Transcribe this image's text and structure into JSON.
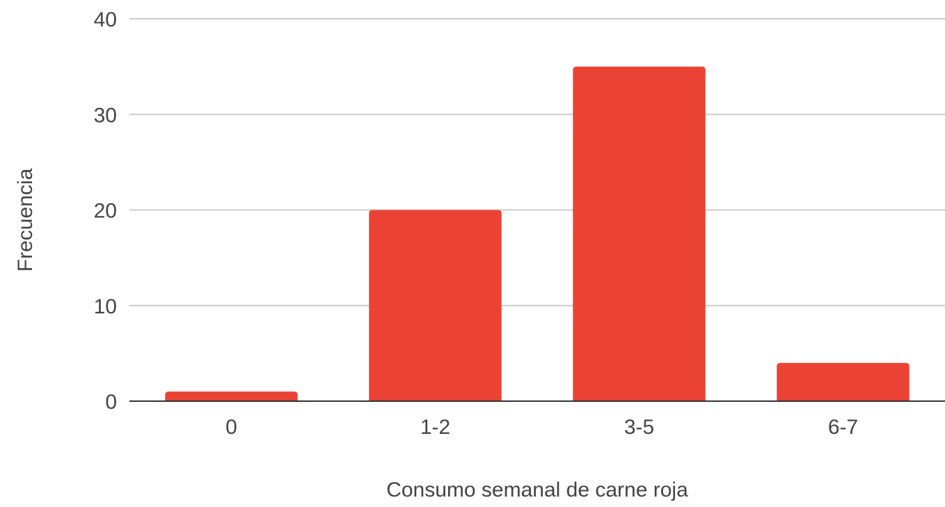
{
  "chart_data": {
    "type": "bar",
    "title": "",
    "xlabel": "Consumo semanal de carne roja",
    "ylabel": "Frecuencia",
    "categories": [
      "0",
      "1-2",
      "3-5",
      "6-7"
    ],
    "series": [
      {
        "values": [
          1,
          20,
          35,
          4
        ]
      }
    ],
    "ylim": [
      0,
      40
    ],
    "yticks": [
      0,
      10,
      20,
      30,
      40
    ],
    "ytick_labels": [
      "0",
      "10",
      "20",
      "30",
      "40"
    ],
    "grid": true,
    "legend": "none",
    "colors": {
      "bar": "#ea4335",
      "grid": "#cccccc",
      "axis": "#333333",
      "text": "#444444"
    }
  }
}
